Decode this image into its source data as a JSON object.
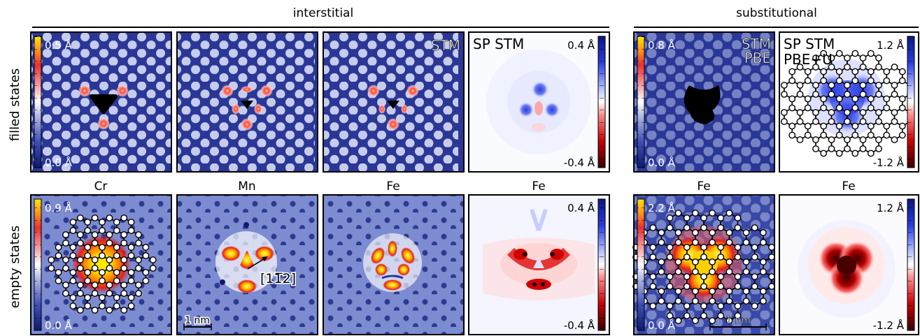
{
  "headers": {
    "interstitial": "interstitial",
    "substitutional": "substitutional"
  },
  "row_labels": {
    "filled": "filled states",
    "empty": "empty states"
  },
  "column_labels": [
    "Cr",
    "Mn",
    "Fe",
    "Fe",
    "Fe",
    "Fe"
  ],
  "overlays": {
    "stm": "STM",
    "sp_stm": "SP STM",
    "pbe": "PBE",
    "pbe_u": "PBE+U",
    "direction": "[11̅2]",
    "scale_bar": "1 nm"
  },
  "colorbars": {
    "filled_interstitial": {
      "top": "0.5 Å",
      "bottom": "0.0 Å"
    },
    "filled_interstitial_sp": {
      "top": "0.4 Å",
      "bottom": "-0.4 Å"
    },
    "filled_substitutional": {
      "top": "0.8 Å",
      "bottom": "0.0 Å"
    },
    "filled_substitutional_sp": {
      "top": "1.2 Å",
      "bottom": "-1.2 Å"
    },
    "empty_interstitial": {
      "top": "0.9 Å",
      "bottom": "0.0 Å"
    },
    "empty_interstitial_sp": {
      "top": "0.4 Å",
      "bottom": "-0.4 Å"
    },
    "empty_substitutional": {
      "top": "2.2 Å",
      "bottom": "0.0 Å"
    },
    "empty_substitutional_sp": {
      "top": "1.2 Å",
      "bottom": "-1.2 Å"
    }
  },
  "colors": {
    "height_map": [
      "#0d1a6e",
      "#2b3aa8",
      "#6f7ec6",
      "#b5bde3",
      "#ffffff",
      "#f4a4a4",
      "#e83030",
      "#ff9a1a",
      "#ffe600"
    ],
    "spin_map": [
      "#3a0000",
      "#c80000",
      "#ff6a6a",
      "#ffffff",
      "#8fa0ff",
      "#2a3ce0",
      "#0a1480"
    ]
  }
}
